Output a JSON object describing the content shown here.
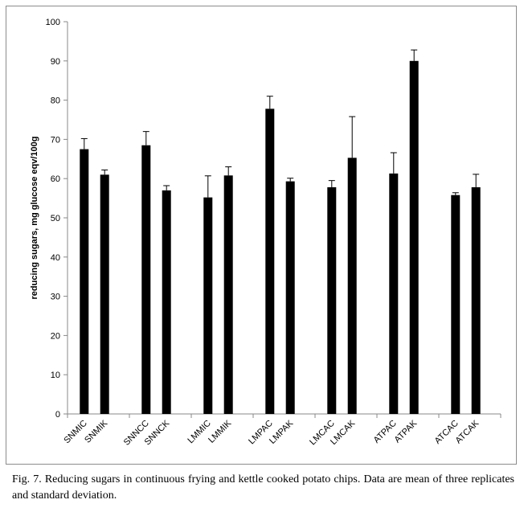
{
  "caption": "Fig. 7. Reducing sugars in continuous frying and kettle cooked potato chips. Data are mean of three replicates and standard deviation.",
  "chart_data": {
    "type": "bar",
    "title": "",
    "xlabel": "",
    "ylabel": "reducing sugars, mg glucose eqv/100g",
    "ylim": [
      0,
      100
    ],
    "yticks": [
      0,
      10,
      20,
      30,
      40,
      50,
      60,
      70,
      80,
      90,
      100
    ],
    "grid": false,
    "legend": "none",
    "bar_color": "#000000",
    "categories": [
      "SNMIC",
      "SNMIK",
      "SNNCC",
      "SNNCK",
      "LMMIC",
      "LMMIK",
      "LMPAC",
      "LMPAK",
      "LMCAC",
      "LMCAK",
      "ATPAC",
      "ATPAK",
      "ATCAC",
      "ATCAK"
    ],
    "values": [
      67.5,
      61.0,
      68.5,
      57.0,
      55.2,
      60.8,
      77.8,
      59.3,
      57.8,
      65.3,
      61.3,
      90.0,
      55.8,
      57.8
    ],
    "error": [
      2.7,
      1.2,
      3.5,
      1.2,
      5.5,
      2.2,
      3.2,
      0.8,
      1.7,
      10.5,
      5.3,
      2.8,
      0.6,
      3.3
    ]
  }
}
